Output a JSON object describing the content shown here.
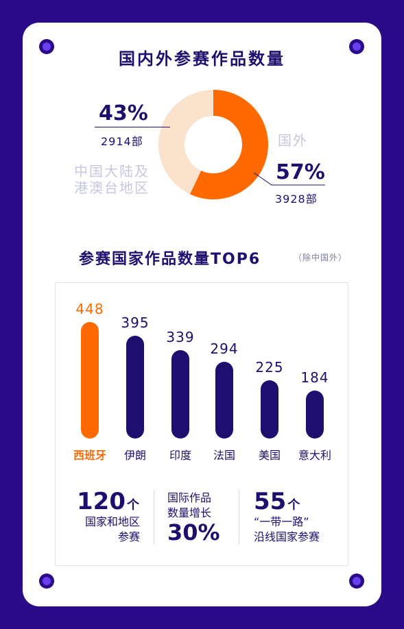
{
  "colors": {
    "background": "#2a0a87",
    "card": "#ffffff",
    "navy": "#1e0f6e",
    "orange": "#ff6a00",
    "peach": "#fbe2cd",
    "muted": "#c5c7df"
  },
  "donut": {
    "title": "国内外参赛作品数量",
    "domestic": {
      "percent": "43%",
      "count": "2914部",
      "label_line1": "中国大陆及",
      "label_line2": "港澳台地区"
    },
    "foreign": {
      "percent": "57%",
      "count": "3928部",
      "label": "国外"
    }
  },
  "bars": {
    "title": "参赛国家作品数量TOP6",
    "subtitle": "（除中国外）"
  },
  "stats": {
    "countries_number": "120",
    "countries_unit": "个",
    "countries_line1": "国家和地区",
    "countries_line2": "参赛",
    "growth_line1": "国际作品",
    "growth_line2": "数量增长",
    "growth_value": "30%",
    "belt_number": "55",
    "belt_unit": "个",
    "belt_line1": "“一带一路”",
    "belt_line2": "沿线国家参赛"
  },
  "chart_data": [
    {
      "type": "pie",
      "title": "国内外参赛作品数量",
      "labels": [
        "中国大陆及港澳台地区",
        "国外"
      ],
      "values": [
        43,
        57
      ],
      "counts": [
        2914,
        3928
      ],
      "colors": [
        "#fbe2cd",
        "#ff6a00"
      ]
    },
    {
      "type": "bar",
      "title": "参赛国家作品数量TOP6",
      "subtitle": "（除中国外）",
      "categories": [
        "西班牙",
        "伊朗",
        "印度",
        "法国",
        "美国",
        "意大利"
      ],
      "values": [
        448,
        395,
        339,
        294,
        225,
        184
      ],
      "highlight_index": 0,
      "highlight_color": "#ff6a00",
      "bar_color": "#1e0f6e"
    }
  ]
}
